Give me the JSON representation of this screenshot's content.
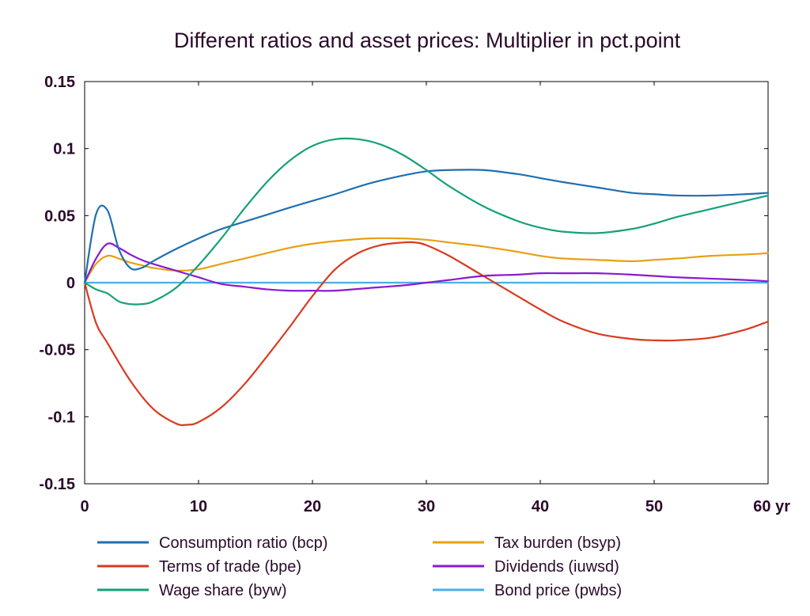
{
  "chart_data": {
    "type": "line",
    "title": "Different ratios and asset prices: Multiplier in pct.point",
    "xlabel": "",
    "ylabel": "",
    "x_unit_label": "yr",
    "xlim": [
      0,
      60
    ],
    "ylim": [
      -0.15,
      0.15
    ],
    "x_ticks": [
      0,
      10,
      20,
      30,
      40,
      50,
      60
    ],
    "x_tick_labels": [
      "0",
      "10",
      "20",
      "30",
      "40",
      "50",
      "60 yr"
    ],
    "y_ticks": [
      0.15,
      0.1,
      0.05,
      0,
      -0.05,
      -0.1,
      -0.15
    ],
    "y_tick_labels": [
      "0.15",
      "0.1",
      "0.05",
      "0",
      "-0.05",
      "-0.1",
      "-0.15"
    ],
    "grid": false,
    "legend_placement": "bottom",
    "zero_line_color": "#1a4a7a",
    "series": [
      {
        "name": "Consumption ratio (bcp)",
        "color": "#1f6fb0",
        "x": [
          0,
          1,
          2,
          3,
          4,
          5,
          6,
          8,
          10,
          12,
          15,
          18,
          20,
          22,
          25,
          28,
          30,
          32,
          35,
          38,
          40,
          42,
          45,
          48,
          50,
          52,
          55,
          58,
          60
        ],
        "y": [
          0,
          0.051,
          0.054,
          0.025,
          0.011,
          0.011,
          0.016,
          0.025,
          0.033,
          0.04,
          0.048,
          0.056,
          0.061,
          0.066,
          0.074,
          0.08,
          0.083,
          0.084,
          0.084,
          0.081,
          0.078,
          0.075,
          0.071,
          0.067,
          0.066,
          0.065,
          0.065,
          0.066,
          0.067
        ]
      },
      {
        "name": "Terms of trade (bpe)",
        "color": "#d93a20",
        "x": [
          0,
          1,
          2,
          4,
          6,
          8,
          9,
          10,
          12,
          14,
          16,
          18,
          20,
          22,
          24,
          26,
          28,
          29,
          30,
          32,
          35,
          38,
          40,
          42,
          45,
          48,
          50,
          52,
          55,
          58,
          60
        ],
        "y": [
          0,
          -0.03,
          -0.045,
          -0.073,
          -0.094,
          -0.105,
          -0.106,
          -0.104,
          -0.093,
          -0.076,
          -0.055,
          -0.033,
          -0.01,
          0.01,
          0.022,
          0.028,
          0.03,
          0.03,
          0.028,
          0.02,
          0.005,
          -0.01,
          -0.02,
          -0.029,
          -0.038,
          -0.042,
          -0.043,
          -0.043,
          -0.041,
          -0.035,
          -0.029
        ]
      },
      {
        "name": "Wage share (byw)",
        "color": "#16a07a",
        "x": [
          0,
          1,
          2,
          3,
          4,
          5,
          6,
          8,
          10,
          12,
          14,
          16,
          18,
          20,
          22,
          24,
          26,
          28,
          30,
          32,
          35,
          38,
          40,
          42,
          45,
          48,
          50,
          52,
          55,
          58,
          60
        ],
        "y": [
          0,
          -0.005,
          -0.008,
          -0.014,
          -0.016,
          -0.016,
          -0.014,
          -0.004,
          0.013,
          0.033,
          0.055,
          0.075,
          0.091,
          0.102,
          0.107,
          0.107,
          0.103,
          0.095,
          0.084,
          0.072,
          0.057,
          0.046,
          0.041,
          0.038,
          0.037,
          0.04,
          0.044,
          0.049,
          0.055,
          0.061,
          0.065
        ]
      },
      {
        "name": "Tax burden (bsyp)",
        "color": "#e8a010",
        "x": [
          0,
          1,
          2,
          3,
          4,
          5,
          6,
          8,
          10,
          12,
          15,
          18,
          20,
          22,
          25,
          28,
          30,
          32,
          35,
          38,
          40,
          42,
          45,
          48,
          50,
          52,
          55,
          58,
          60
        ],
        "y": [
          0,
          0.014,
          0.02,
          0.018,
          0.015,
          0.013,
          0.011,
          0.009,
          0.01,
          0.014,
          0.02,
          0.026,
          0.029,
          0.031,
          0.033,
          0.033,
          0.032,
          0.03,
          0.027,
          0.023,
          0.02,
          0.018,
          0.017,
          0.016,
          0.017,
          0.018,
          0.02,
          0.021,
          0.022
        ]
      },
      {
        "name": "Dividends (iuwsd)",
        "color": "#8a1ad0",
        "x": [
          0,
          1,
          2,
          3,
          4,
          5,
          6,
          8,
          10,
          12,
          14,
          16,
          18,
          20,
          22,
          25,
          28,
          30,
          32,
          35,
          38,
          40,
          42,
          45,
          48,
          50,
          52,
          55,
          58,
          60
        ],
        "y": [
          0,
          0.018,
          0.029,
          0.026,
          0.021,
          0.017,
          0.014,
          0.009,
          0.004,
          -0.001,
          -0.003,
          -0.005,
          -0.006,
          -0.006,
          -0.006,
          -0.004,
          -0.002,
          0,
          0.002,
          0.005,
          0.006,
          0.007,
          0.007,
          0.007,
          0.006,
          0.005,
          0.004,
          0.003,
          0.002,
          0.001
        ]
      },
      {
        "name": "Bond price (pwbs)",
        "color": "#4ab0e8",
        "x": [
          0,
          60
        ],
        "y": [
          0,
          0
        ]
      }
    ]
  }
}
